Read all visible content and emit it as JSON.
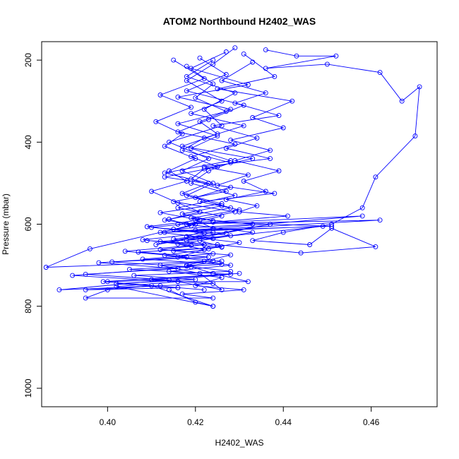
{
  "chart_data": {
    "type": "line",
    "title": "ATOM2 Northbound H2402_WAS",
    "xlabel": "H2402_WAS",
    "ylabel": "Pressure (mbar)",
    "xlim": [
      0.385,
      0.475
    ],
    "ylim": [
      1045,
      155
    ],
    "y_inverted": true,
    "xticks": [
      0.4,
      0.42,
      0.44,
      0.46
    ],
    "xtick_labels": [
      "0.40",
      "0.42",
      "0.44",
      "0.46"
    ],
    "yticks": [
      200,
      400,
      600,
      800,
      1000
    ],
    "ytick_labels": [
      "200",
      "400",
      "600",
      "800",
      "1000"
    ],
    "grid": false,
    "legend": "none",
    "series": [
      {
        "color": "#0000ff",
        "marker": "open-circle",
        "x": [
          0.429,
          0.424,
          0.418,
          0.426,
          0.419,
          0.431,
          0.422,
          0.417,
          0.428,
          0.423,
          0.419,
          0.429,
          0.416,
          0.426,
          0.418,
          0.433,
          0.421,
          0.426,
          0.415,
          0.428,
          0.422,
          0.418,
          0.424,
          0.432,
          0.416,
          0.426,
          0.421,
          0.412,
          0.424,
          0.386,
          0.396,
          0.42,
          0.413,
          0.428,
          0.418,
          0.424,
          0.417,
          0.423,
          0.414,
          0.426,
          0.422,
          0.429,
          0.418,
          0.424
        ],
        "y": [
          170,
          210,
          250,
          300,
          330,
          360,
          390,
          420,
          450,
          470,
          500,
          530,
          560,
          580,
          600,
          620,
          640,
          655,
          665,
          675,
          690,
          700,
          720,
          740,
          740,
          760,
          720,
          700,
          690,
          705,
          660,
          600,
          590,
          560,
          530,
          500,
          470,
          440,
          400,
          360,
          320,
          280,
          240,
          200
        ]
      },
      {
        "color": "#0000ff",
        "marker": "open-circle",
        "x": [
          0.427,
          0.419,
          0.432,
          0.416,
          0.428,
          0.421,
          0.425,
          0.417,
          0.433,
          0.422,
          0.419,
          0.427,
          0.415,
          0.429,
          0.42,
          0.424,
          0.418,
          0.43,
          0.423,
          0.416,
          0.428,
          0.414,
          0.426,
          0.42,
          0.431,
          0.417,
          0.424,
          0.395,
          0.4,
          0.41,
          0.424,
          0.42,
          0.414
        ],
        "y": [
          180,
          220,
          260,
          290,
          320,
          350,
          380,
          410,
          440,
          465,
          490,
          520,
          545,
          570,
          590,
          610,
          630,
          645,
          660,
          680,
          700,
          715,
          730,
          750,
          760,
          770,
          780,
          780,
          760,
          750,
          800,
          790,
          760
        ]
      },
      {
        "color": "#0000ff",
        "marker": "open-circle",
        "x": [
          0.436,
          0.443,
          0.452,
          0.436,
          0.45,
          0.462,
          0.467,
          0.471,
          0.47,
          0.461,
          0.458,
          0.451,
          0.44,
          0.433,
          0.446,
          0.451,
          0.461,
          0.444,
          0.425,
          0.409
        ],
        "y": [
          175,
          190,
          190,
          220,
          210,
          230,
          300,
          265,
          385,
          485,
          560,
          600,
          620,
          640,
          650,
          610,
          655,
          670,
          650,
          640
        ]
      },
      {
        "color": "#0000ff",
        "marker": "open-circle",
        "x": [
          0.431,
          0.438,
          0.425,
          0.442,
          0.433,
          0.44,
          0.428,
          0.437,
          0.429,
          0.439,
          0.431,
          0.436,
          0.427,
          0.434,
          0.43,
          0.441,
          0.424,
          0.451,
          0.42,
          0.462,
          0.416,
          0.458,
          0.413,
          0.449,
          0.418,
          0.437,
          0.411,
          0.424
        ],
        "y": [
          185,
          240,
          270,
          300,
          340,
          365,
          395,
          420,
          445,
          470,
          495,
          520,
          540,
          555,
          570,
          580,
          595,
          605,
          615,
          590,
          600,
          580,
          620,
          605,
          640,
          600,
          650,
          620
        ]
      },
      {
        "color": "#0000ff",
        "marker": "open-circle",
        "x": [
          0.421,
          0.427,
          0.418,
          0.431,
          0.423,
          0.416,
          0.429,
          0.419,
          0.425,
          0.413,
          0.428,
          0.42,
          0.426,
          0.417,
          0.424,
          0.41,
          0.427,
          0.415,
          0.422,
          0.412,
          0.424,
          0.408,
          0.426,
          0.405,
          0.428,
          0.389,
          0.424,
          0.41,
          0.43,
          0.399,
          0.422
        ],
        "y": [
          195,
          235,
          275,
          310,
          345,
          375,
          405,
          435,
          460,
          485,
          510,
          535,
          555,
          575,
          592,
          608,
          622,
          636,
          650,
          662,
          672,
          685,
          698,
          710,
          722,
          760,
          745,
          735,
          720,
          740,
          760
        ]
      },
      {
        "color": "#0000ff",
        "marker": "open-circle",
        "x": [
          0.415,
          0.422,
          0.412,
          0.419,
          0.411,
          0.417,
          0.413,
          0.42,
          0.414,
          0.418,
          0.41,
          0.416,
          0.421,
          0.414,
          0.419,
          0.412,
          0.424,
          0.416,
          0.422,
          0.413,
          0.426,
          0.418,
          0.428,
          0.406,
          0.42,
          0.402,
          0.416,
          0.395,
          0.412
        ],
        "y": [
          200,
          245,
          285,
          315,
          350,
          380,
          410,
          440,
          470,
          495,
          520,
          548,
          570,
          588,
          604,
          620,
          635,
          648,
          662,
          676,
          690,
          702,
          715,
          725,
          735,
          745,
          755,
          760,
          750
        ]
      },
      {
        "color": "#0000ff",
        "marker": "open-circle",
        "x": [
          0.433,
          0.426,
          0.436,
          0.429,
          0.439,
          0.424,
          0.434,
          0.427,
          0.437,
          0.422,
          0.432,
          0.425,
          0.438,
          0.421,
          0.43,
          0.419,
          0.433,
          0.415,
          0.428,
          0.412,
          0.426,
          0.407,
          0.423,
          0.401,
          0.419,
          0.392,
          0.416,
          0.402,
          0.424
        ],
        "y": [
          205,
          250,
          280,
          305,
          335,
          360,
          390,
          415,
          440,
          460,
          480,
          505,
          525,
          545,
          565,
          585,
          600,
          612,
          628,
          642,
          656,
          668,
          680,
          692,
          704,
          725,
          740,
          752,
          800
        ]
      },
      {
        "color": "#0000ff",
        "marker": "open-circle",
        "x": [
          0.418,
          0.424,
          0.42,
          0.427,
          0.416,
          0.425,
          0.419,
          0.428,
          0.413,
          0.423,
          0.417,
          0.426,
          0.412,
          0.421,
          0.409,
          0.422,
          0.408,
          0.419,
          0.404,
          0.418,
          0.398,
          0.416,
          0.395,
          0.414,
          0.4
        ],
        "y": [
          215,
          258,
          292,
          325,
          355,
          385,
          415,
          445,
          475,
          500,
          525,
          550,
          572,
          590,
          606,
          622,
          638,
          652,
          666,
          680,
          694,
          708,
          722,
          736,
          740
        ]
      }
    ]
  }
}
